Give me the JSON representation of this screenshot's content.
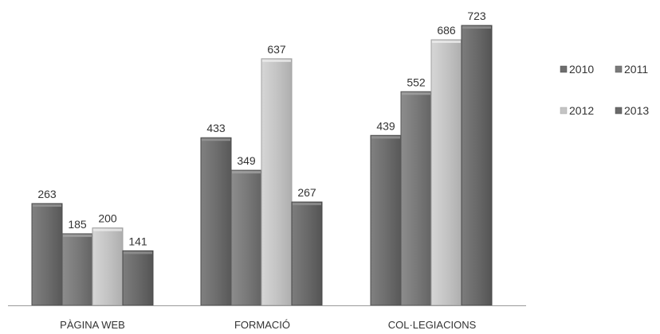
{
  "chart_data": {
    "type": "bar",
    "categories": [
      "PÀGINA WEB",
      "FORMACIÓ",
      "COL·LEGIACIONS"
    ],
    "series": [
      {
        "name": "2010",
        "values": [
          263,
          433,
          439
        ],
        "color": "#6e6e6e"
      },
      {
        "name": "2011",
        "values": [
          185,
          349,
          552
        ],
        "color": "#7a7a7a"
      },
      {
        "name": "2012",
        "values": [
          200,
          637,
          686
        ],
        "color": "#c4c4c4"
      },
      {
        "name": "2013",
        "values": [
          141,
          267,
          723
        ],
        "color": "#6a6a6a"
      }
    ],
    "title": "",
    "xlabel": "",
    "ylabel": "",
    "ylim": [
      0,
      723
    ],
    "grid": false,
    "legend_position": "right"
  }
}
